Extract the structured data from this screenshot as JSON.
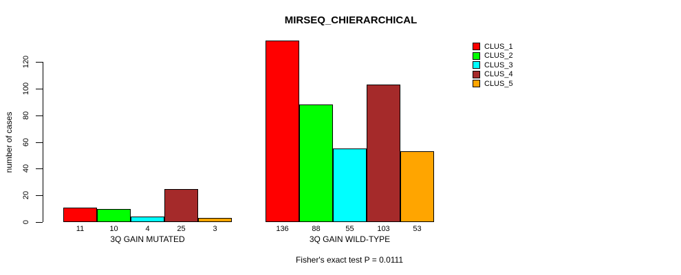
{
  "chart_data": {
    "type": "bar",
    "title": "MIRSEQ_CHIERARCHICAL",
    "xlabel": "",
    "ylabel": "number of cases",
    "ylim": [
      0,
      140
    ],
    "yticks": [
      0,
      20,
      40,
      60,
      80,
      100,
      120
    ],
    "grid": false,
    "legend_position": "right",
    "categories": [
      "3Q GAIN MUTATED",
      "3Q GAIN WILD-TYPE"
    ],
    "series": [
      {
        "name": "CLUS_1",
        "color": "#FF0000",
        "values": [
          11,
          136
        ]
      },
      {
        "name": "CLUS_2",
        "color": "#00FF00",
        "values": [
          10,
          88
        ]
      },
      {
        "name": "CLUS_3",
        "color": "#00FFFF",
        "values": [
          4,
          55
        ]
      },
      {
        "name": "CLUS_4",
        "color": "#A52A2A",
        "values": [
          25,
          103
        ]
      },
      {
        "name": "CLUS_5",
        "color": "#FFA500",
        "values": [
          3,
          53
        ]
      }
    ],
    "groups": [
      {
        "label": "3Q GAIN MUTATED",
        "values": [
          11,
          10,
          4,
          25,
          3
        ],
        "value_labels": [
          "11",
          "10",
          "4",
          "25",
          "3"
        ]
      },
      {
        "label": "3Q GAIN WILD-TYPE",
        "values": [
          136,
          88,
          55,
          103,
          53
        ],
        "value_labels": [
          "136",
          "88",
          "55",
          "103",
          "53"
        ]
      }
    ],
    "series_colors": [
      "#FF0000",
      "#00FF00",
      "#00FFFF",
      "#A52A2A",
      "#FFA500"
    ],
    "legend_entries": [
      "CLUS_1",
      "CLUS_2",
      "CLUS_3",
      "CLUS_4",
      "CLUS_5"
    ],
    "annotation": "Fisher's exact test P = 0.0111"
  }
}
